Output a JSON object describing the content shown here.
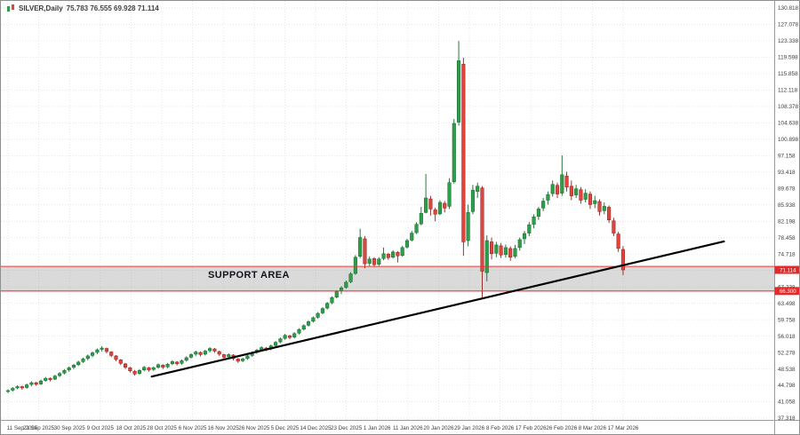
{
  "title": {
    "symbol": "SILVER,Daily",
    "ohlc": "75.783 76.555 69.928 71.114"
  },
  "axes": {
    "price_max": 130.818,
    "price_min": 37.318,
    "price_labels": [
      "130.818",
      "127.078",
      "123.338",
      "119.598",
      "115.858",
      "112.118",
      "108.378",
      "104.638",
      "100.898",
      "97.158",
      "93.418",
      "89.678",
      "85.938",
      "82.198",
      "78.458",
      "74.718",
      "70.978",
      "67.238",
      "63.498",
      "59.758",
      "56.018",
      "52.278",
      "48.538",
      "44.798",
      "41.058",
      "37.318"
    ],
    "date_labels": [
      "11 Sep 2025",
      "21 Sep 2025",
      "30 Sep 2025",
      "9 Oct 2025",
      "18 Oct 2025",
      "28 Oct 2025",
      "6 Nov 2025",
      "16 Nov 2025",
      "26 Nov 2025",
      "5 Dec 2025",
      "14 Dec 2025",
      "23 Dec 2025",
      "1 Jan 2026",
      "11 Jan 2026",
      "20 Jan 2026",
      "29 Jan 2026",
      "8 Feb 2026",
      "17 Feb 2026",
      "26 Feb 2026",
      "8 Mar 2026",
      "17 Mar 2026"
    ]
  },
  "chart_data": {
    "type": "candlestick",
    "symbol": "SILVER",
    "timeframe": "Daily",
    "current_ohlc": {
      "open": 75.783,
      "high": 76.555,
      "low": 69.928,
      "close": 71.114
    },
    "y_range": [
      37.318,
      130.818
    ],
    "grid": true,
    "colors": {
      "up": "#2f9e4a",
      "down": "#e0443c",
      "up_stroke": "#15672b",
      "down_stroke": "#8f211c"
    },
    "candles_ohlc": [
      [
        43.4,
        43.9,
        43.0,
        43.6
      ],
      [
        43.7,
        44.4,
        43.4,
        44.1
      ],
      [
        44.2,
        44.8,
        43.9,
        44.5
      ],
      [
        44.5,
        44.7,
        43.8,
        44.2
      ],
      [
        44.3,
        45.2,
        44.0,
        44.9
      ],
      [
        45.0,
        45.7,
        44.6,
        45.4
      ],
      [
        45.4,
        45.6,
        44.7,
        45.0
      ],
      [
        45.1,
        46.1,
        44.9,
        45.8
      ],
      [
        45.9,
        46.7,
        45.6,
        46.4
      ],
      [
        46.4,
        46.6,
        45.7,
        46.1
      ],
      [
        46.2,
        47.2,
        46.0,
        46.9
      ],
      [
        47.0,
        47.8,
        46.7,
        47.5
      ],
      [
        47.6,
        48.5,
        47.3,
        48.2
      ],
      [
        48.3,
        49.1,
        47.9,
        48.8
      ],
      [
        48.9,
        49.7,
        48.5,
        49.4
      ],
      [
        49.5,
        50.4,
        49.2,
        50.1
      ],
      [
        50.2,
        51.1,
        49.9,
        50.8
      ],
      [
        50.9,
        51.8,
        50.5,
        51.5
      ],
      [
        51.6,
        52.5,
        51.2,
        52.2
      ],
      [
        52.3,
        53.2,
        51.9,
        52.9
      ],
      [
        53.0,
        53.7,
        52.5,
        53.3
      ],
      [
        53.2,
        53.4,
        52.1,
        52.5
      ],
      [
        52.4,
        52.6,
        51.2,
        51.6
      ],
      [
        51.5,
        51.7,
        50.3,
        50.7
      ],
      [
        50.6,
        50.8,
        49.4,
        49.8
      ],
      [
        49.7,
        49.9,
        48.5,
        48.9
      ],
      [
        48.8,
        49.0,
        47.7,
        48.1
      ],
      [
        48.0,
        48.3,
        47.0,
        47.4
      ],
      [
        47.5,
        48.5,
        47.2,
        48.2
      ],
      [
        48.3,
        49.2,
        48.0,
        48.9
      ],
      [
        48.8,
        49.0,
        47.9,
        48.3
      ],
      [
        48.4,
        49.1,
        48.1,
        48.8
      ],
      [
        48.9,
        49.8,
        48.6,
        49.5
      ],
      [
        49.4,
        49.6,
        48.5,
        48.9
      ],
      [
        49.0,
        49.9,
        48.7,
        49.6
      ],
      [
        49.7,
        50.5,
        49.4,
        50.2
      ],
      [
        50.1,
        50.3,
        49.3,
        49.7
      ],
      [
        49.8,
        50.7,
        49.5,
        50.4
      ],
      [
        50.5,
        51.4,
        50.2,
        51.1
      ],
      [
        51.2,
        52.1,
        50.9,
        51.8
      ],
      [
        51.9,
        52.7,
        51.5,
        52.4
      ],
      [
        52.3,
        52.5,
        51.4,
        51.8
      ],
      [
        51.9,
        52.9,
        51.6,
        52.6
      ],
      [
        52.7,
        53.5,
        52.3,
        53.2
      ],
      [
        53.1,
        53.3,
        52.2,
        52.6
      ],
      [
        52.5,
        52.7,
        51.5,
        51.9
      ],
      [
        51.8,
        52.0,
        50.8,
        51.2
      ],
      [
        51.3,
        52.1,
        51.0,
        51.8
      ],
      [
        51.7,
        51.9,
        50.5,
        50.9
      ],
      [
        50.8,
        51.0,
        49.9,
        50.3
      ],
      [
        50.4,
        51.1,
        50.1,
        50.8
      ],
      [
        50.9,
        51.8,
        50.6,
        51.5
      ],
      [
        51.6,
        52.5,
        51.3,
        52.2
      ],
      [
        52.3,
        53.1,
        52.0,
        52.8
      ],
      [
        52.9,
        53.7,
        52.6,
        53.4
      ],
      [
        53.3,
        53.5,
        52.6,
        53.0
      ],
      [
        53.1,
        54.1,
        52.8,
        53.8
      ],
      [
        53.9,
        54.9,
        53.6,
        54.6
      ],
      [
        54.7,
        55.7,
        54.4,
        55.4
      ],
      [
        55.5,
        56.5,
        55.2,
        56.2
      ],
      [
        56.1,
        56.3,
        55.3,
        55.7
      ],
      [
        55.8,
        56.9,
        55.5,
        56.6
      ],
      [
        56.7,
        57.8,
        56.4,
        57.5
      ],
      [
        57.6,
        58.7,
        57.3,
        58.4
      ],
      [
        58.5,
        59.6,
        58.2,
        59.3
      ],
      [
        59.4,
        60.5,
        59.1,
        60.2
      ],
      [
        60.3,
        61.5,
        60.0,
        61.2
      ],
      [
        61.3,
        62.6,
        61.0,
        62.3
      ],
      [
        62.4,
        63.8,
        62.1,
        63.5
      ],
      [
        63.6,
        65.1,
        63.3,
        64.8
      ],
      [
        64.9,
        66.5,
        64.6,
        66.2
      ],
      [
        66.3,
        67.4,
        65.6,
        67.0
      ],
      [
        67.1,
        68.7,
        66.8,
        68.3
      ],
      [
        68.4,
        70.6,
        68.1,
        70.2
      ],
      [
        70.3,
        74.5,
        70.0,
        74.0
      ],
      [
        74.2,
        80.5,
        73.8,
        78.5
      ],
      [
        78.2,
        78.8,
        71.5,
        72.5
      ],
      [
        72.6,
        74.2,
        72.0,
        73.6
      ],
      [
        73.7,
        74.0,
        71.8,
        72.3
      ],
      [
        72.4,
        74.0,
        72.0,
        73.6
      ],
      [
        73.7,
        76.2,
        73.3,
        74.8
      ],
      [
        74.7,
        75.0,
        73.4,
        73.9
      ],
      [
        74.0,
        75.6,
        73.7,
        75.2
      ],
      [
        75.1,
        75.4,
        72.8,
        74.3
      ],
      [
        74.4,
        76.6,
        74.1,
        76.2
      ],
      [
        76.3,
        78.2,
        76.0,
        77.8
      ],
      [
        77.9,
        80.0,
        77.6,
        79.5
      ],
      [
        79.6,
        82.0,
        79.3,
        81.5
      ],
      [
        81.6,
        85.5,
        81.3,
        84.0
      ],
      [
        84.2,
        93.0,
        84.0,
        87.5
      ],
      [
        87.3,
        88.0,
        83.5,
        85.0
      ],
      [
        84.8,
        85.3,
        82.2,
        83.8
      ],
      [
        83.9,
        87.0,
        83.6,
        86.5
      ],
      [
        86.3,
        86.8,
        84.2,
        85.2
      ],
      [
        85.6,
        92.0,
        85.0,
        91.0
      ],
      [
        91.2,
        105.5,
        90.8,
        104.5
      ],
      [
        104.8,
        123.3,
        104.0,
        118.8
      ],
      [
        118.0,
        119.5,
        74.3,
        77.5
      ],
      [
        77.8,
        86.0,
        76.5,
        84.2
      ],
      [
        84.4,
        90.5,
        83.8,
        89.3
      ],
      [
        89.0,
        91.0,
        87.5,
        90.2
      ],
      [
        89.8,
        90.2,
        64.5,
        70.8
      ],
      [
        70.5,
        79.0,
        68.5,
        77.8
      ],
      [
        77.5,
        78.5,
        73.5,
        74.8
      ],
      [
        74.9,
        77.5,
        74.0,
        76.8
      ],
      [
        76.6,
        77.2,
        73.8,
        74.5
      ],
      [
        74.6,
        76.9,
        73.9,
        76.2
      ],
      [
        76.0,
        76.5,
        73.2,
        74.0
      ],
      [
        74.2,
        76.8,
        73.8,
        76.0
      ],
      [
        76.2,
        78.5,
        75.5,
        78.0
      ],
      [
        78.2,
        80.0,
        77.0,
        79.4
      ],
      [
        79.5,
        82.0,
        78.8,
        81.4
      ],
      [
        81.5,
        83.8,
        80.6,
        83.2
      ],
      [
        83.3,
        85.5,
        82.5,
        85.0
      ],
      [
        85.2,
        87.5,
        84.5,
        86.8
      ],
      [
        87.0,
        89.0,
        86.0,
        88.3
      ],
      [
        88.5,
        91.5,
        87.8,
        90.6
      ],
      [
        90.4,
        91.0,
        87.5,
        88.4
      ],
      [
        88.6,
        97.2,
        88.0,
        92.8
      ],
      [
        92.5,
        93.5,
        89.0,
        90.0
      ],
      [
        90.2,
        91.5,
        87.0,
        88.0
      ],
      [
        88.2,
        90.5,
        87.5,
        89.6
      ],
      [
        89.4,
        90.0,
        86.2,
        87.0
      ],
      [
        87.2,
        89.5,
        86.5,
        88.6
      ],
      [
        88.4,
        89.0,
        85.0,
        86.0
      ],
      [
        86.2,
        88.0,
        85.2,
        86.9
      ],
      [
        86.7,
        87.2,
        83.5,
        84.4
      ],
      [
        84.6,
        86.5,
        83.8,
        85.6
      ],
      [
        85.4,
        85.8,
        81.8,
        82.5
      ],
      [
        82.3,
        83.0,
        78.8,
        79.5
      ],
      [
        79.3,
        79.8,
        75.2,
        76.0
      ],
      [
        75.783,
        76.555,
        69.928,
        71.114
      ]
    ],
    "annotations": {
      "support_area": {
        "label": "SUPPORT AREA",
        "top_price": 71.9,
        "bottom_price": 66.3,
        "line_color": "#f03434",
        "fill_color": "#9e9e9e"
      },
      "trendline": {
        "direction": "ascending",
        "color": "#000000",
        "x1_frac": 0.195,
        "start_price": 46.8,
        "x2_frac": 0.935,
        "end_price": 77.6
      },
      "price_tags": [
        "71.114",
        "66.300"
      ],
      "tag_color": "#e12b2b"
    }
  }
}
